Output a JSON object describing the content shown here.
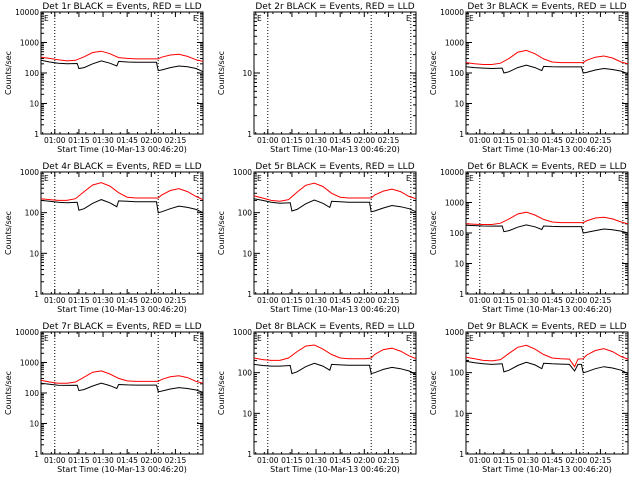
{
  "chart_data": [
    {
      "type": "line",
      "title": "Det 1r BLACK = Events, RED = LLD",
      "xlabel": "Start Time (10-Mar-13 00:46:20)",
      "ylabel": "Counts/sec",
      "yscale": "log",
      "ylim": [
        1,
        10000
      ],
      "xlim": [
        0,
        94
      ],
      "x_tick_labels": [
        "01:00",
        "01:15",
        "01:30",
        "01:45",
        "02:00",
        "02:15"
      ],
      "y_tick_labels": [
        "1",
        "10",
        "100",
        "1000",
        "10000"
      ],
      "vlines_dotted": [
        8,
        68,
        91
      ],
      "legend_label": "E",
      "series": [
        {
          "color": "#ff0000",
          "x": [
            0,
            5,
            10,
            15,
            20,
            25,
            30,
            35,
            40,
            45,
            50,
            55,
            60,
            65,
            68,
            70,
            75,
            80,
            85,
            90,
            94
          ],
          "y": [
            330,
            300,
            270,
            250,
            260,
            340,
            470,
            520,
            430,
            320,
            300,
            290,
            290,
            290,
            290,
            330,
            390,
            410,
            350,
            270,
            240
          ]
        },
        {
          "color": "#000000",
          "x": [
            0,
            5,
            10,
            15,
            21,
            22,
            25,
            30,
            35,
            40,
            44,
            45,
            50,
            55,
            60,
            65,
            67,
            68,
            70,
            75,
            80,
            85,
            90,
            94
          ],
          "y": [
            260,
            230,
            210,
            200,
            205,
            140,
            150,
            200,
            250,
            210,
            170,
            240,
            230,
            225,
            225,
            225,
            225,
            120,
            125,
            150,
            170,
            160,
            140,
            110
          ]
        }
      ]
    },
    {
      "type": "line",
      "title": "Det 2r BLACK = Events, RED = LLD",
      "xlabel": "Start Time (10-Mar-13 00:46:20)",
      "ylabel": "Counts/sec",
      "yscale": "log",
      "ylim": [
        1,
        100
      ],
      "xlim": [
        0,
        94
      ],
      "x_tick_labels": [
        "01:00",
        "01:15",
        "01:30",
        "01:45",
        "02:00",
        "02:15"
      ],
      "y_tick_labels": [
        "1",
        "10"
      ],
      "vlines_dotted": [
        8,
        68,
        91
      ],
      "legend_label": "E",
      "series": []
    },
    {
      "type": "line",
      "title": "Det 3r BLACK = Events, RED = LLD",
      "xlabel": "Start Time (10-Mar-13 00:46:20)",
      "ylabel": "Counts/sec",
      "yscale": "log",
      "ylim": [
        1,
        10000
      ],
      "xlim": [
        0,
        94
      ],
      "x_tick_labels": [
        "01:00",
        "01:15",
        "01:30",
        "01:45",
        "02:00",
        "02:15"
      ],
      "y_tick_labels": [
        "1",
        "10",
        "100",
        "1000",
        "10000"
      ],
      "vlines_dotted": [
        68,
        91
      ],
      "legend_label": "E",
      "series": [
        {
          "color": "#ff0000",
          "x": [
            0,
            5,
            10,
            15,
            20,
            25,
            30,
            35,
            40,
            45,
            50,
            55,
            60,
            65,
            68,
            70,
            75,
            80,
            85,
            90,
            94
          ],
          "y": [
            220,
            200,
            190,
            190,
            210,
            300,
            480,
            550,
            430,
            290,
            230,
            220,
            220,
            220,
            220,
            260,
            330,
            360,
            310,
            230,
            200
          ]
        },
        {
          "color": "#000000",
          "x": [
            0,
            5,
            10,
            15,
            21,
            22,
            25,
            30,
            35,
            40,
            44,
            45,
            50,
            55,
            60,
            65,
            67,
            68,
            70,
            75,
            80,
            85,
            90,
            94
          ],
          "y": [
            160,
            150,
            145,
            140,
            145,
            100,
            110,
            150,
            180,
            150,
            120,
            165,
            160,
            158,
            158,
            158,
            158,
            100,
            105,
            125,
            140,
            130,
            115,
            95
          ]
        }
      ]
    },
    {
      "type": "line",
      "title": "Det 4r BLACK = Events, RED = LLD",
      "xlabel": "Start Time (10-Mar-13 00:46:20)",
      "ylabel": "Counts/sec",
      "yscale": "log",
      "ylim": [
        1,
        1000
      ],
      "xlim": [
        0,
        94
      ],
      "x_tick_labels": [
        "01:00",
        "01:15",
        "01:30",
        "01:45",
        "02:00",
        "02:15"
      ],
      "y_tick_labels": [
        "1",
        "10",
        "100",
        "1000"
      ],
      "vlines_dotted": [
        8,
        68,
        91
      ],
      "legend_label": "E",
      "series": [
        {
          "color": "#ff0000",
          "x": [
            0,
            5,
            10,
            15,
            20,
            25,
            30,
            35,
            40,
            45,
            50,
            55,
            60,
            65,
            68,
            70,
            75,
            80,
            85,
            90,
            94
          ],
          "y": [
            220,
            210,
            200,
            200,
            220,
            330,
            480,
            550,
            450,
            310,
            240,
            230,
            230,
            230,
            230,
            270,
            350,
            390,
            330,
            250,
            210
          ]
        },
        {
          "color": "#000000",
          "x": [
            0,
            5,
            10,
            15,
            21,
            22,
            25,
            30,
            35,
            40,
            44,
            45,
            50,
            55,
            60,
            65,
            67,
            68,
            70,
            75,
            80,
            85,
            90,
            94
          ],
          "y": [
            200,
            190,
            180,
            175,
            180,
            115,
            125,
            170,
            210,
            175,
            140,
            195,
            190,
            185,
            185,
            185,
            185,
            100,
            105,
            125,
            145,
            135,
            120,
            100
          ]
        }
      ]
    },
    {
      "type": "line",
      "title": "Det 5r BLACK = Events, RED = LLD",
      "xlabel": "Start Time (10-Mar-13 00:46:20)",
      "ylabel": "Counts/sec",
      "yscale": "log",
      "ylim": [
        1,
        1000
      ],
      "xlim": [
        0,
        94
      ],
      "x_tick_labels": [
        "01:00",
        "01:15",
        "01:30",
        "01:45",
        "02:00",
        "02:15"
      ],
      "y_tick_labels": [
        "1",
        "10",
        "100",
        "1000"
      ],
      "vlines_dotted": [
        8,
        68,
        91
      ],
      "legend_label": "E",
      "series": [
        {
          "color": "#ff0000",
          "x": [
            0,
            5,
            10,
            15,
            20,
            25,
            30,
            35,
            40,
            45,
            50,
            55,
            60,
            65,
            68,
            70,
            75,
            80,
            85,
            90,
            94
          ],
          "y": [
            260,
            230,
            200,
            190,
            210,
            320,
            470,
            530,
            440,
            300,
            240,
            230,
            230,
            230,
            230,
            270,
            340,
            380,
            330,
            250,
            220
          ]
        },
        {
          "color": "#000000",
          "x": [
            0,
            5,
            10,
            15,
            21,
            22,
            25,
            30,
            35,
            40,
            44,
            45,
            50,
            55,
            60,
            65,
            67,
            68,
            70,
            75,
            80,
            85,
            90,
            94
          ],
          "y": [
            220,
            200,
            180,
            170,
            175,
            110,
            120,
            165,
            205,
            170,
            135,
            190,
            185,
            180,
            180,
            180,
            180,
            105,
            110,
            130,
            150,
            140,
            125,
            105
          ]
        }
      ]
    },
    {
      "type": "line",
      "title": "Det 6r BLACK = Events, RED = LLD",
      "xlabel": "Start Time (10-Mar-13 00:46:20)",
      "ylabel": "Counts/sec",
      "yscale": "log",
      "ylim": [
        1,
        10000
      ],
      "xlim": [
        0,
        94
      ],
      "x_tick_labels": [
        "01:00",
        "01:15",
        "01:30",
        "01:45",
        "02:00",
        "02:15"
      ],
      "y_tick_labels": [
        "1",
        "10",
        "100",
        "1000",
        "10000"
      ],
      "vlines_dotted": [
        8,
        68,
        91
      ],
      "legend_label": "E",
      "series": [
        {
          "color": "#ff0000",
          "x": [
            0,
            5,
            10,
            15,
            20,
            25,
            30,
            35,
            40,
            45,
            50,
            55,
            60,
            65,
            68,
            70,
            75,
            80,
            85,
            90,
            94
          ],
          "y": [
            200,
            195,
            190,
            190,
            210,
            290,
            420,
            480,
            390,
            280,
            230,
            220,
            220,
            220,
            220,
            250,
            310,
            330,
            290,
            230,
            200
          ]
        },
        {
          "color": "#000000",
          "x": [
            0,
            5,
            10,
            15,
            21,
            22,
            25,
            30,
            35,
            40,
            44,
            45,
            50,
            55,
            60,
            65,
            67,
            68,
            70,
            75,
            80,
            85,
            90,
            94
          ],
          "y": [
            180,
            175,
            170,
            168,
            170,
            110,
            120,
            155,
            185,
            160,
            130,
            170,
            165,
            162,
            162,
            162,
            162,
            100,
            105,
            120,
            135,
            128,
            115,
            100
          ]
        }
      ]
    },
    {
      "type": "line",
      "title": "Det 7r BLACK = Events, RED = LLD",
      "xlabel": "Start Time (10-Mar-13 00:46:20)",
      "ylabel": "Counts/sec",
      "yscale": "log",
      "ylim": [
        1,
        10000
      ],
      "xlim": [
        0,
        94
      ],
      "x_tick_labels": [
        "01:00",
        "01:15",
        "01:30",
        "01:45",
        "02:00",
        "02:15"
      ],
      "y_tick_labels": [
        "1",
        "10",
        "100",
        "1000",
        "10000"
      ],
      "vlines_dotted": [
        8,
        68,
        91
      ],
      "legend_label": "E",
      "series": [
        {
          "color": "#ff0000",
          "x": [
            0,
            5,
            10,
            15,
            20,
            25,
            30,
            35,
            40,
            45,
            50,
            55,
            60,
            65,
            68,
            70,
            75,
            80,
            85,
            90,
            94
          ],
          "y": [
            260,
            230,
            210,
            210,
            230,
            330,
            480,
            530,
            420,
            300,
            250,
            240,
            240,
            240,
            240,
            280,
            340,
            370,
            320,
            240,
            210
          ]
        },
        {
          "color": "#000000",
          "x": [
            0,
            5,
            10,
            15,
            21,
            22,
            25,
            30,
            35,
            40,
            44,
            45,
            50,
            55,
            60,
            65,
            67,
            68,
            70,
            75,
            80,
            85,
            90,
            94
          ],
          "y": [
            210,
            195,
            180,
            178,
            180,
            120,
            130,
            170,
            210,
            175,
            140,
            190,
            185,
            182,
            182,
            182,
            182,
            110,
            115,
            135,
            150,
            140,
            125,
            105
          ]
        }
      ]
    },
    {
      "type": "line",
      "title": "Det 8r BLACK = Events, RED = LLD",
      "xlabel": "Start Time (10-Mar-13 00:46:20)",
      "ylabel": "Counts/sec",
      "yscale": "log",
      "ylim": [
        1,
        1000
      ],
      "xlim": [
        0,
        94
      ],
      "x_tick_labels": [
        "01:00",
        "01:15",
        "01:30",
        "01:45",
        "02:00",
        "02:15"
      ],
      "y_tick_labels": [
        "1",
        "10",
        "100",
        "1000"
      ],
      "vlines_dotted": [
        8,
        68,
        91
      ],
      "legend_label": "E",
      "series": [
        {
          "color": "#ff0000",
          "x": [
            0,
            5,
            10,
            15,
            20,
            25,
            30,
            35,
            40,
            45,
            50,
            55,
            60,
            65,
            68,
            70,
            75,
            80,
            85,
            90,
            94
          ],
          "y": [
            230,
            210,
            200,
            200,
            230,
            330,
            450,
            480,
            380,
            280,
            230,
            220,
            220,
            220,
            230,
            280,
            370,
            400,
            340,
            260,
            220
          ]
        },
        {
          "color": "#000000",
          "x": [
            0,
            5,
            10,
            15,
            21,
            22,
            25,
            30,
            35,
            40,
            44,
            45,
            50,
            55,
            60,
            65,
            67,
            68,
            70,
            75,
            80,
            85,
            90,
            94
          ],
          "y": [
            160,
            150,
            145,
            145,
            150,
            95,
            105,
            140,
            170,
            145,
            115,
            160,
            155,
            152,
            152,
            152,
            152,
            95,
            100,
            120,
            135,
            125,
            110,
            90
          ]
        }
      ]
    },
    {
      "type": "line",
      "title": "Det 9r BLACK = Events, RED = LLD",
      "xlabel": "Start Time (10-Mar-13 00:46:20)",
      "ylabel": "Counts/sec",
      "yscale": "log",
      "ylim": [
        1,
        1000
      ],
      "xlim": [
        0,
        94
      ],
      "x_tick_labels": [
        "01:00",
        "01:15",
        "01:30",
        "01:45",
        "02:00",
        "02:15"
      ],
      "y_tick_labels": [
        "1",
        "10",
        "100",
        "1000"
      ],
      "vlines_dotted": [
        68,
        91
      ],
      "legend_label": "E",
      "series": [
        {
          "color": "#ff0000",
          "x": [
            0,
            5,
            10,
            15,
            20,
            25,
            30,
            35,
            40,
            45,
            50,
            55,
            60,
            63,
            65,
            68,
            70,
            75,
            80,
            85,
            90,
            94
          ],
          "y": [
            240,
            220,
            200,
            195,
            210,
            300,
            420,
            470,
            380,
            280,
            230,
            220,
            215,
            140,
            215,
            220,
            270,
            350,
            390,
            330,
            250,
            215
          ]
        },
        {
          "color": "#000000",
          "x": [
            0,
            5,
            10,
            15,
            21,
            22,
            25,
            30,
            35,
            40,
            44,
            45,
            50,
            55,
            60,
            63,
            65,
            67,
            68,
            70,
            75,
            80,
            85,
            90,
            94
          ],
          "y": [
            190,
            175,
            165,
            160,
            165,
            105,
            115,
            150,
            180,
            155,
            125,
            170,
            165,
            162,
            160,
            110,
            160,
            160,
            100,
            105,
            125,
            140,
            130,
            115,
            95
          ]
        }
      ]
    }
  ]
}
